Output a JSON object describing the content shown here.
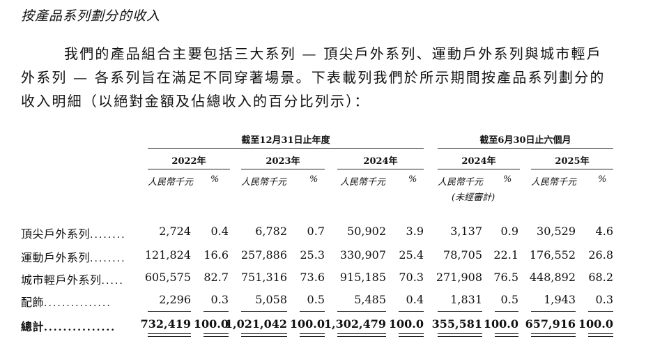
{
  "heading": "按產品系列劃分的收入",
  "paragraph": {
    "line1": "我們的產品組合主要包括三大系列 — 頂尖戶外系列、運動戶外系列與城市輕戶",
    "line2": "外系列 — 各系列旨在滿足不同穿著場景。下表載列我們於所示期間按產品系列劃分的",
    "line3": "收入明細（以絕對金額及佔總收入的百分比列示）："
  },
  "table": {
    "group_annual": "截至12月31日止年度",
    "group_interim": "截至6月30日止六個月",
    "years": [
      "2022年",
      "2023年",
      "2024年",
      "2024年",
      "2025年"
    ],
    "unit_amount": "人民幣千元",
    "unit_pct": "%",
    "unaudited": "(未經審計)",
    "rows": [
      {
        "label": "頂尖戶外系列",
        "dots": "........",
        "values": [
          "2,724",
          "0.4",
          "6,782",
          "0.7",
          "50,902",
          "3.9",
          "3,137",
          "0.9",
          "30,529",
          "4.6"
        ]
      },
      {
        "label": "運動戶外系列",
        "dots": "........",
        "values": [
          "121,824",
          "16.6",
          "257,886",
          "25.3",
          "330,907",
          "25.4",
          "78,705",
          "22.1",
          "176,552",
          "26.8"
        ]
      },
      {
        "label": "城市輕戶外系列",
        "dots": ".....",
        "values": [
          "605,575",
          "82.7",
          "751,316",
          "73.6",
          "915,185",
          "70.3",
          "271,908",
          "76.5",
          "448,892",
          "68.2"
        ]
      },
      {
        "label": "配飾",
        "dots": "...............",
        "values": [
          "2,296",
          "0.3",
          "5,058",
          "0.5",
          "5,485",
          "0.4",
          "1,831",
          "0.5",
          "1,943",
          "0.3"
        ]
      }
    ],
    "total": {
      "label": "總計",
      "dots": "...............",
      "values": [
        "732,419",
        "100.0",
        "1,021,042",
        "100.0",
        "1,302,479",
        "100.0",
        "355,581",
        "100.0",
        "657,916",
        "100.0"
      ]
    }
  }
}
